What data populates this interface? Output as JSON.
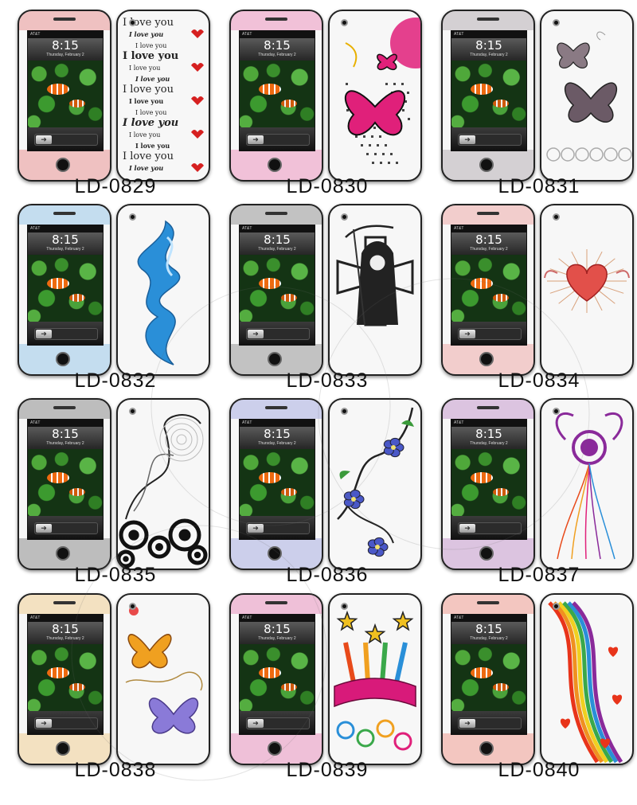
{
  "phone_screen": {
    "clock": "8:15",
    "date": "Thursday, February 2",
    "carrier": "AT&T"
  },
  "products": [
    {
      "code": "LD-0829",
      "design": "i-love-you-text",
      "accent": "#d62020"
    },
    {
      "code": "LD-0830",
      "design": "pink-butterfly",
      "accent": "#e0207a"
    },
    {
      "code": "LD-0831",
      "design": "grey-butterflies",
      "accent": "#6b5a66"
    },
    {
      "code": "LD-0832",
      "design": "blue-flame",
      "accent": "#2a8fd8"
    },
    {
      "code": "LD-0833",
      "design": "grim-reaper-cross",
      "accent": "#222222"
    },
    {
      "code": "LD-0834",
      "design": "winged-heart",
      "accent": "#e2504a"
    },
    {
      "code": "LD-0835",
      "design": "black-circles-swirl",
      "accent": "#111111"
    },
    {
      "code": "LD-0836",
      "design": "blue-flower-vine",
      "accent": "#4a58c8"
    },
    {
      "code": "LD-0837",
      "design": "purple-flower-swirl",
      "accent": "#8a2a9a"
    },
    {
      "code": "LD-0838",
      "design": "colorful-butterflies",
      "accent": "#e8a020"
    },
    {
      "code": "LD-0839",
      "design": "stars-ribbon",
      "accent": "#d81a7a"
    },
    {
      "code": "LD-0840",
      "design": "rainbow-hearts",
      "accent": "#e8341a"
    }
  ]
}
